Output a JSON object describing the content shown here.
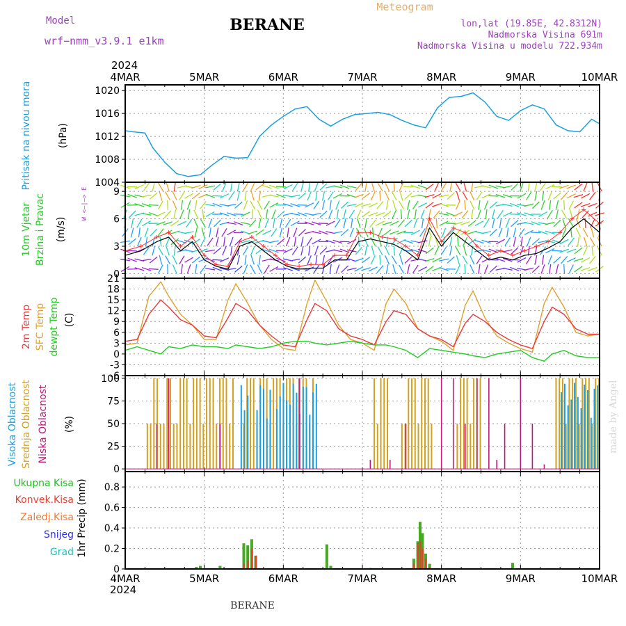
{
  "header": {
    "model_label": "Model",
    "model_name": "wrf−nmm_v3.9.1  e1km",
    "station": "BERANE",
    "product": "Meteogram",
    "coords": "lon,lat (19.85E, 42.8312N)",
    "elevation": "Nadmorska Visina 691m",
    "model_elevation": "Nadmorska Visina u modelu 722.934m",
    "footer_station": "BERANE",
    "watermark": "made by Angel"
  },
  "colors": {
    "pressure": "#1a9fe0",
    "temp2m": "#e8383a",
    "sfc_temp": "#e0a030",
    "dewpt": "#22cc22",
    "cloud_high": "#1a9fe0",
    "cloud_mid": "#d4a020",
    "cloud_low": "#c0187a",
    "precip_total": "#44aa22",
    "precip_conv": "#e84030",
    "wind_speed": "#111111",
    "gust": "#ff3030",
    "title_purple": "#a040c0",
    "title_orange": "#e0b070"
  },
  "time_axis": {
    "year_label": "2024",
    "ticks": [
      "4MAR",
      "5MAR",
      "6MAR",
      "7MAR",
      "8MAR",
      "9MAR",
      "10MAR"
    ]
  },
  "chart_data": [
    {
      "type": "line",
      "name": "pressure",
      "ylabel": "Pritisak na nivou mora",
      "unit": "(hPa)",
      "ylim": [
        1004,
        1021
      ],
      "yticks": [
        1004,
        1008,
        1012,
        1016,
        1020
      ],
      "x_days": [
        0,
        0.1,
        0.25,
        0.35,
        0.5,
        0.65,
        0.8,
        0.95,
        1.1,
        1.25,
        1.4,
        1.55,
        1.7,
        1.85,
        2.0,
        2.15,
        2.3,
        2.45,
        2.6,
        2.75,
        2.9,
        3.05,
        3.2,
        3.35,
        3.5,
        3.65,
        3.8,
        3.95,
        4.1,
        4.25,
        4.4,
        4.55,
        4.7,
        4.85,
        5.0,
        5.15,
        5.3,
        5.45,
        5.6,
        5.75,
        5.9,
        6.0
      ],
      "values": [
        1013,
        1012.8,
        1012.6,
        1010,
        1007.5,
        1005.5,
        1005,
        1005.3,
        1007,
        1008.5,
        1008.2,
        1008.3,
        1012,
        1014,
        1015.5,
        1016.8,
        1017.2,
        1015,
        1013.8,
        1015,
        1015.8,
        1016,
        1016.2,
        1015.8,
        1014.8,
        1014,
        1013.5,
        1017,
        1018.8,
        1019,
        1019.6,
        1018,
        1015.5,
        1014.8,
        1016.5,
        1017.5,
        1016.8,
        1014,
        1013,
        1012.8,
        1015,
        1014.2
      ]
    },
    {
      "type": "line",
      "name": "wind",
      "ylabel": "10m Vjetar",
      "ylabel2": "Brzina i Pravac",
      "unit": "(m/s)",
      "compass": "W <–|–> E",
      "ylim": [
        -0.5,
        10
      ],
      "yticks": [
        0,
        3,
        6,
        9
      ],
      "x_days": [
        0,
        0.2,
        0.4,
        0.55,
        0.7,
        0.85,
        1.0,
        1.15,
        1.3,
        1.45,
        1.6,
        1.75,
        1.9,
        2.05,
        2.2,
        2.35,
        2.5,
        2.65,
        2.8,
        2.95,
        3.1,
        3.25,
        3.4,
        3.55,
        3.7,
        3.85,
        4.0,
        4.15,
        4.3,
        4.45,
        4.6,
        4.75,
        4.9,
        5.05,
        5.2,
        5.35,
        5.5,
        5.65,
        5.8,
        6.0
      ],
      "speed": [
        2,
        2.5,
        3.5,
        4,
        2.5,
        3.5,
        1.5,
        0.8,
        0.5,
        3,
        3.5,
        2.5,
        1.5,
        0.8,
        0.5,
        0.6,
        0.6,
        1.5,
        1.5,
        3.5,
        3.8,
        3.5,
        3.2,
        2.5,
        1.5,
        5,
        3,
        4.5,
        3.5,
        2.5,
        1.5,
        1.8,
        1.5,
        2,
        2.2,
        2.8,
        3.5,
        5,
        6,
        4.5
      ],
      "gust": [
        2.5,
        3,
        4,
        4.5,
        3,
        4,
        2,
        1,
        0.8,
        3.5,
        4,
        3,
        2,
        1,
        0.8,
        1,
        1,
        2,
        2,
        4.5,
        4.5,
        4,
        3.8,
        3,
        2,
        6,
        3.5,
        5,
        4.5,
        3,
        2,
        2.5,
        2,
        2.5,
        3,
        3.5,
        4.5,
        6,
        7,
        5.5
      ]
    },
    {
      "type": "line",
      "name": "temperature",
      "ylabel": "2m Temp",
      "ylabel2": "SFC Temp",
      "ylabel3": "dewpt Temp",
      "unit": "(C)",
      "ylim": [
        -6,
        21
      ],
      "yticks": [
        -6,
        -3,
        0,
        3,
        6,
        9,
        12,
        15,
        18,
        21
      ],
      "x_days": [
        0,
        0.15,
        0.3,
        0.45,
        0.55,
        0.7,
        0.85,
        1.0,
        1.15,
        1.3,
        1.4,
        1.55,
        1.7,
        1.85,
        2.0,
        2.15,
        2.3,
        2.4,
        2.55,
        2.7,
        2.85,
        3.0,
        3.15,
        3.3,
        3.4,
        3.55,
        3.7,
        3.85,
        4.0,
        4.15,
        4.3,
        4.4,
        4.55,
        4.7,
        4.85,
        5.0,
        5.15,
        5.3,
        5.4,
        5.55,
        5.7,
        5.85,
        6.0
      ],
      "t2m": [
        3.5,
        4,
        11,
        15,
        13,
        9.5,
        8,
        5,
        4.5,
        10,
        14,
        12,
        8,
        5,
        2.5,
        2,
        9.5,
        14,
        12,
        7,
        5,
        4,
        2.5,
        9,
        12,
        11,
        7,
        5,
        4,
        2,
        8.5,
        11,
        9,
        6,
        4,
        2.5,
        1.5,
        9,
        13,
        11,
        7,
        5.5,
        5.5
      ],
      "sfc": [
        2.5,
        3,
        16,
        20,
        16,
        11,
        8,
        4,
        4,
        15,
        19.5,
        14,
        8,
        4,
        1.5,
        1,
        14,
        20.5,
        14.5,
        8,
        4,
        3,
        1,
        14,
        18,
        14,
        7,
        5,
        3.5,
        1,
        13.5,
        17.5,
        10,
        5,
        3,
        1.5,
        0.5,
        14,
        18.5,
        13,
        6,
        5,
        5.5
      ],
      "dewpt": [
        1,
        2,
        1,
        0,
        2,
        1.5,
        2.5,
        2,
        2,
        1.5,
        2.5,
        2,
        1.5,
        2,
        3,
        3.5,
        3.5,
        3,
        2.5,
        3,
        3.5,
        3,
        2.5,
        2.5,
        2,
        1,
        -1,
        1.5,
        1,
        0.5,
        0,
        -0.5,
        -1,
        0,
        0.5,
        1,
        -1,
        -2,
        0,
        1,
        -0.5,
        -1,
        -1
      ]
    },
    {
      "type": "bar",
      "name": "clouds",
      "ylabel": "Visoka Oblacnost",
      "ylabel2": "Srednja Oblacnost",
      "ylabel3": "Niska Oblacnost",
      "unit": "(%)",
      "ylim": [
        -3,
        103
      ],
      "yticks": [
        0,
        25,
        50,
        75,
        100
      ],
      "mid_spans_days": [
        [
          0.28,
          1.4
        ],
        [
          1.5,
          2.4
        ],
        [
          3.15,
          3.35
        ],
        [
          3.5,
          3.9
        ],
        [
          4.2,
          4.5
        ],
        [
          5.45,
          6.0
        ]
      ],
      "high_spans_days": [
        [
          1.45,
          1.55
        ],
        [
          1.65,
          1.85
        ],
        [
          1.9,
          2.4
        ],
        [
          5.5,
          6.0
        ]
      ],
      "low_spikes_days": [
        [
          0.4,
          50
        ],
        [
          0.55,
          100
        ],
        [
          1.2,
          50
        ],
        [
          2.2,
          100
        ],
        [
          3.1,
          10
        ],
        [
          3.35,
          10
        ],
        [
          3.55,
          50
        ],
        [
          4.0,
          100
        ],
        [
          4.15,
          100
        ],
        [
          4.3,
          50
        ],
        [
          4.45,
          100
        ],
        [
          4.6,
          100
        ],
        [
          4.7,
          10
        ],
        [
          4.8,
          50
        ],
        [
          5.0,
          100
        ],
        [
          5.15,
          50
        ],
        [
          5.3,
          5
        ]
      ]
    },
    {
      "type": "bar",
      "name": "precip",
      "ylabel": "1hr Precip (mm)",
      "legend": [
        "Ukupna Kisa",
        "Konvek.Kisa",
        "Zaledj.Kisa",
        "Snijeg",
        "Grad"
      ],
      "ylim": [
        0,
        0.95
      ],
      "yticks": [
        0,
        0.2,
        0.4,
        0.6,
        0.8
      ],
      "x_days": [
        0.9,
        0.95,
        1.2,
        1.5,
        1.55,
        1.6,
        1.65,
        2.55,
        2.6,
        3.1,
        3.65,
        3.7,
        3.73,
        3.76,
        3.8,
        3.85,
        4.9
      ],
      "total": [
        0.02,
        0.03,
        0.03,
        0.25,
        0.23,
        0.29,
        0.13,
        0.24,
        0.03,
        0.01,
        0.1,
        0.27,
        0.46,
        0.35,
        0.15,
        0.05,
        0.06
      ],
      "conv": [
        0.0,
        0.0,
        0.0,
        0.05,
        0.08,
        0.2,
        0.13,
        0.0,
        0.0,
        0.0,
        0.05,
        0.25,
        0.27,
        0.2,
        0.1,
        0.02,
        0.0
      ]
    }
  ]
}
